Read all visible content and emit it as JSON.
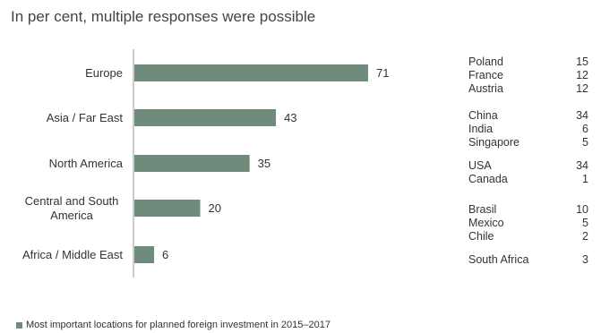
{
  "subtitle": "In per cent, multiple responses were possible",
  "colors": {
    "bar": "#6f8b7c",
    "axis": "#999999"
  },
  "legend": {
    "label": "Most important locations for planned foreign investment in 2015–2017"
  },
  "chart_data": {
    "type": "bar",
    "orientation": "horizontal",
    "title": "",
    "subtitle": "In per cent, multiple responses were possible",
    "xlabel": "",
    "ylabel": "",
    "xlim": [
      0,
      80
    ],
    "grid": false,
    "legend_position": "bottom-left",
    "categories": [
      "Europe",
      "Asia / Far East",
      "North America",
      "Central and South America",
      "Africa / Middle East"
    ],
    "series": [
      {
        "name": "Most important locations for planned foreign investment in 2015–2017",
        "values": [
          71,
          43,
          35,
          20,
          6
        ]
      }
    ],
    "category_labels": [
      [
        "Europe"
      ],
      [
        "Asia / Far East"
      ],
      [
        "North America"
      ],
      [
        "Central and South",
        "America"
      ],
      [
        "Africa / Middle East"
      ]
    ]
  },
  "side_table": [
    [
      {
        "name": "Poland",
        "value": "15"
      },
      {
        "name": "France",
        "value": "12"
      },
      {
        "name": "Austria",
        "value": "12"
      }
    ],
    [
      {
        "name": "China",
        "value": "34"
      },
      {
        "name": "India",
        "value": "6"
      },
      {
        "name": "Singapore",
        "value": "5"
      }
    ],
    [
      {
        "name": "USA",
        "value": "34"
      },
      {
        "name": "Canada",
        "value": "1"
      }
    ],
    [
      {
        "name": "Brasil",
        "value": "10"
      },
      {
        "name": "Mexico",
        "value": "5"
      },
      {
        "name": "Chile",
        "value": "2"
      }
    ],
    [
      {
        "name": "South Africa",
        "value": "3"
      }
    ]
  ]
}
